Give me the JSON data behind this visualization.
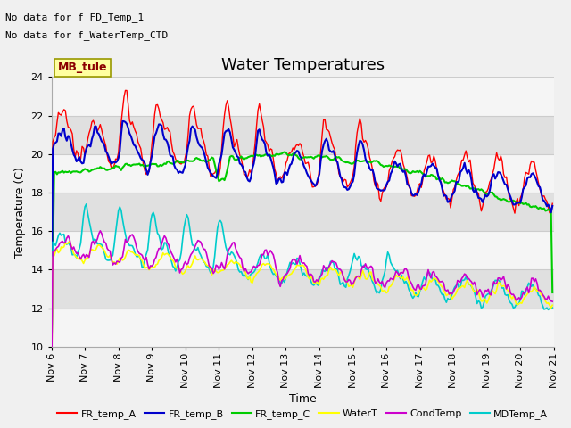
{
  "title": "Water Temperatures",
  "ylabel": "Temperature (C)",
  "xlabel": "Time",
  "xlim": [
    0,
    360
  ],
  "ylim": [
    10,
    24
  ],
  "yticks": [
    10,
    12,
    14,
    16,
    18,
    20,
    22,
    24
  ],
  "xtick_labels": [
    "Nov 6",
    "Nov 7",
    "Nov 8",
    "Nov 9",
    "Nov 10",
    "Nov 11",
    "Nov 12",
    "Nov 13",
    "Nov 14",
    "Nov 15",
    "Nov 16",
    "Nov 17",
    "Nov 18",
    "Nov 19",
    "Nov 20",
    "Nov 21"
  ],
  "xtick_positions": [
    0,
    24,
    48,
    72,
    96,
    120,
    144,
    168,
    192,
    216,
    240,
    264,
    288,
    312,
    336,
    360
  ],
  "text_ann_1": "No data for f FD_Temp_1",
  "text_ann_2": "No data for f_WaterTemp_CTD",
  "mb_tule_text": "MB_tule",
  "series_colors": {
    "FR_temp_A": "#ff0000",
    "FR_temp_B": "#0000cc",
    "FR_temp_C": "#00cc00",
    "WaterT": "#ffff00",
    "CondTemp": "#cc00cc",
    "MDTemp_A": "#00cccc"
  },
  "background_color": "#f0f0f0",
  "plot_bg_color": "#e8e8e8",
  "band_light": "#f5f5f5",
  "band_dark": "#e0e0e0",
  "grid_color": "#cccccc",
  "title_fontsize": 13,
  "axis_label_fontsize": 9,
  "tick_label_fontsize": 8,
  "ann_fontsize": 8,
  "mb_fontsize": 9
}
